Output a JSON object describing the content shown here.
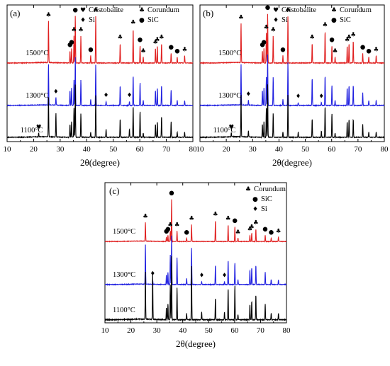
{
  "chart_data": [
    {
      "type": "line",
      "panel_label": "(a)",
      "xlabel": "2θ(degree)",
      "ylabel": "",
      "xlim": [
        10,
        80
      ],
      "x_ticks": [
        10,
        20,
        30,
        40,
        50,
        60,
        70,
        80
      ],
      "legend": {
        "placement": "top-right",
        "entries": [
          {
            "symbol": "♥",
            "label": "Cristobalite"
          },
          {
            "symbol": "♣",
            "label": "Corundum"
          },
          {
            "symbol": "♦",
            "label": "Si"
          },
          {
            "symbol": "●",
            "label": "SiC"
          }
        ]
      },
      "series": [
        {
          "name": "1500°C",
          "color": "#e02020",
          "label_x": 17
        },
        {
          "name": "1300°C",
          "color": "#2020e0",
          "label_x": 17
        },
        {
          "name": "1100°C",
          "color": "#000000",
          "label_x": 15
        }
      ],
      "peaks": [
        {
          "x": 25.6,
          "h": [
            0.85,
            0.8,
            0.75
          ],
          "m": "♣"
        },
        {
          "x": 33.7,
          "h": [
            0.25,
            0.3,
            0.25
          ],
          "m": "●"
        },
        {
          "x": 34.3,
          "h": [
            0.3,
            0.35,
            0.3
          ],
          "m": "●"
        },
        {
          "x": 35.2,
          "h": [
            0.55,
            0.5,
            0.55
          ],
          "m": "♣"
        },
        {
          "x": 35.7,
          "h": [
            0.95,
            0.95,
            1.0
          ],
          "m": "●"
        },
        {
          "x": 37.8,
          "h": [
            0.55,
            0.5,
            0.45
          ],
          "m": "♣"
        },
        {
          "x": 41.5,
          "h": [
            0.15,
            0.12,
            0.1
          ],
          "m": "●"
        },
        {
          "x": 43.4,
          "h": [
            0.95,
            0.8,
            0.8
          ],
          "m": "♣"
        },
        {
          "x": 52.6,
          "h": [
            0.4,
            0.4,
            0.35
          ],
          "m": "♣"
        },
        {
          "x": 57.5,
          "h": [
            0.7,
            0.6,
            0.6
          ],
          "m": "♣"
        },
        {
          "x": 60.1,
          "h": [
            0.35,
            0.45,
            0.5
          ],
          "m": "●"
        },
        {
          "x": 61.3,
          "h": [
            0.12,
            0.1,
            0.08
          ],
          "m": "♣"
        },
        {
          "x": 65.9,
          "h": [
            0.3,
            0.3,
            0.25
          ],
          "m": "♣"
        },
        {
          "x": 66.6,
          "h": [
            0.35,
            0.35,
            0.3
          ],
          "m": "♣"
        },
        {
          "x": 68.2,
          "h": [
            0.4,
            0.4,
            0.4
          ],
          "m": "♣"
        },
        {
          "x": 71.8,
          "h": [
            0.2,
            0.3,
            0.3
          ],
          "m": "●"
        },
        {
          "x": 74.1,
          "h": [
            0.12,
            0.1,
            0.1
          ],
          "m": "●"
        },
        {
          "x": 76.9,
          "h": [
            0.15,
            0.1,
            0.1
          ],
          "m": "♣"
        },
        {
          "x": 21.9,
          "h": [
            0.0,
            0.0,
            0.08
          ],
          "m": "♥"
        },
        {
          "x": 28.4,
          "h": [
            0.0,
            0.15,
            0.45
          ],
          "m": "♦"
        },
        {
          "x": 47.3,
          "h": [
            0.0,
            0.08,
            0.15
          ],
          "m": "♦"
        },
        {
          "x": 56.1,
          "h": [
            0.0,
            0.08,
            0.15
          ],
          "m": "♦"
        }
      ]
    },
    {
      "type": "line",
      "panel_label": "(b)",
      "xlabel": "2θ(degree)",
      "ylabel": "",
      "xlim": [
        10,
        80
      ],
      "x_ticks": [
        10,
        20,
        30,
        40,
        50,
        60,
        70,
        80
      ],
      "legend": {
        "placement": "top-right",
        "entries": [
          {
            "symbol": "♥",
            "label": "Cristobalite"
          },
          {
            "symbol": "♣",
            "label": "Corundum"
          },
          {
            "symbol": "♦",
            "label": "Si"
          },
          {
            "symbol": "●",
            "label": "SiC"
          }
        ]
      },
      "series": [
        {
          "name": "1500°C",
          "color": "#e02020",
          "label_x": 17
        },
        {
          "name": "1300°C",
          "color": "#2020e0",
          "label_x": 17
        },
        {
          "name": "1100°C",
          "color": "#000000",
          "label_x": 15
        }
      ],
      "peaks": [
        {
          "x": 25.6,
          "h": [
            0.8,
            0.8,
            0.8
          ],
          "m": "♣"
        },
        {
          "x": 33.7,
          "h": [
            0.25,
            0.3,
            0.25
          ],
          "m": "●"
        },
        {
          "x": 34.3,
          "h": [
            0.3,
            0.35,
            0.3
          ],
          "m": "●"
        },
        {
          "x": 35.2,
          "h": [
            0.6,
            0.55,
            0.55
          ],
          "m": "♣"
        },
        {
          "x": 35.7,
          "h": [
            1.0,
            1.0,
            1.0
          ],
          "m": "●"
        },
        {
          "x": 37.8,
          "h": [
            0.55,
            0.55,
            0.45
          ],
          "m": "♣"
        },
        {
          "x": 41.5,
          "h": [
            0.15,
            0.12,
            0.1
          ],
          "m": "●"
        },
        {
          "x": 43.4,
          "h": [
            0.95,
            0.85,
            0.8
          ],
          "m": "♣"
        },
        {
          "x": 52.6,
          "h": [
            0.4,
            0.55,
            0.35
          ],
          "m": "♣"
        },
        {
          "x": 57.5,
          "h": [
            0.65,
            0.6,
            0.6
          ],
          "m": "♣"
        },
        {
          "x": 60.1,
          "h": [
            0.35,
            0.4,
            0.45
          ],
          "m": "●"
        },
        {
          "x": 61.3,
          "h": [
            0.12,
            0.1,
            0.08
          ],
          "m": "♣"
        },
        {
          "x": 65.9,
          "h": [
            0.35,
            0.35,
            0.3
          ],
          "m": "♣"
        },
        {
          "x": 66.6,
          "h": [
            0.4,
            0.4,
            0.35
          ],
          "m": "♣"
        },
        {
          "x": 68.2,
          "h": [
            0.45,
            0.4,
            0.35
          ],
          "m": "♣"
        },
        {
          "x": 71.8,
          "h": [
            0.2,
            0.25,
            0.25
          ],
          "m": "●"
        },
        {
          "x": 74.1,
          "h": [
            0.12,
            0.1,
            0.1
          ],
          "m": "●"
        },
        {
          "x": 76.9,
          "h": [
            0.15,
            0.1,
            0.1
          ],
          "m": "♣"
        },
        {
          "x": 21.9,
          "h": [
            0.0,
            0.0,
            0.08
          ],
          "m": "♥"
        },
        {
          "x": 28.4,
          "h": [
            0.0,
            0.1,
            0.12
          ],
          "m": "♦"
        },
        {
          "x": 47.3,
          "h": [
            0.0,
            0.06,
            0.1
          ],
          "m": "♦"
        },
        {
          "x": 56.1,
          "h": [
            0.0,
            0.06,
            0.12
          ],
          "m": "♦"
        }
      ]
    },
    {
      "type": "line",
      "panel_label": "(c)",
      "xlabel": "2θ(degree)",
      "ylabel": "",
      "xlim": [
        10,
        80
      ],
      "x_ticks": [
        10,
        20,
        30,
        40,
        50,
        60,
        70,
        80
      ],
      "legend": {
        "placement": "top-right",
        "entries": [
          {
            "symbol": "♣",
            "label": "Corundum"
          },
          {
            "symbol": "●",
            "label": "SiC"
          },
          {
            "symbol": "♦",
            "label": "Si"
          }
        ]
      },
      "series": [
        {
          "name": "1500°C",
          "color": "#e02020",
          "label_x": 13
        },
        {
          "name": "1300°C",
          "color": "#2020e0",
          "label_x": 13
        },
        {
          "name": "1100°C",
          "color": "#000000",
          "label_x": 13
        }
      ],
      "peaks": [
        {
          "x": 25.6,
          "h": [
            0.45,
            0.8,
            0.75
          ],
          "m": "♣"
        },
        {
          "x": 33.7,
          "h": [
            0.1,
            0.2,
            0.2
          ],
          "m": "●"
        },
        {
          "x": 34.3,
          "h": [
            0.15,
            0.25,
            0.25
          ],
          "m": "●"
        },
        {
          "x": 35.2,
          "h": [
            0.25,
            0.6,
            0.55
          ],
          "m": "♣"
        },
        {
          "x": 35.7,
          "h": [
            1.0,
            1.0,
            1.0
          ],
          "m": "●"
        },
        {
          "x": 37.8,
          "h": [
            0.25,
            0.55,
            0.5
          ],
          "m": "♣"
        },
        {
          "x": 41.5,
          "h": [
            0.08,
            0.12,
            0.1
          ],
          "m": "●"
        },
        {
          "x": 43.4,
          "h": [
            0.4,
            0.75,
            0.85
          ],
          "m": "♣"
        },
        {
          "x": 52.6,
          "h": [
            0.5,
            0.4,
            0.35
          ],
          "m": "♣"
        },
        {
          "x": 57.5,
          "h": [
            0.4,
            0.5,
            0.5
          ],
          "m": "♣"
        },
        {
          "x": 60.1,
          "h": [
            0.35,
            0.45,
            0.55
          ],
          "m": "●"
        },
        {
          "x": 61.3,
          "h": [
            0.08,
            0.1,
            0.08
          ],
          "m": "♣"
        },
        {
          "x": 65.9,
          "h": [
            0.15,
            0.3,
            0.25
          ],
          "m": "♣"
        },
        {
          "x": 66.6,
          "h": [
            0.2,
            0.35,
            0.3
          ],
          "m": "♣"
        },
        {
          "x": 68.2,
          "h": [
            0.3,
            0.4,
            0.4
          ],
          "m": "♣"
        },
        {
          "x": 71.8,
          "h": [
            0.15,
            0.25,
            0.25
          ],
          "m": "●"
        },
        {
          "x": 74.1,
          "h": [
            0.08,
            0.1,
            0.1
          ],
          "m": "●"
        },
        {
          "x": 76.9,
          "h": [
            0.1,
            0.1,
            0.1
          ],
          "m": "♣"
        },
        {
          "x": 28.4,
          "h": [
            0.0,
            0.1,
            0.75
          ],
          "m": "♦"
        },
        {
          "x": 47.3,
          "h": [
            0.0,
            0.06,
            0.12
          ],
          "m": "♦"
        },
        {
          "x": 56.1,
          "h": [
            0.0,
            0.06,
            0.12
          ],
          "m": "♦"
        }
      ]
    }
  ]
}
